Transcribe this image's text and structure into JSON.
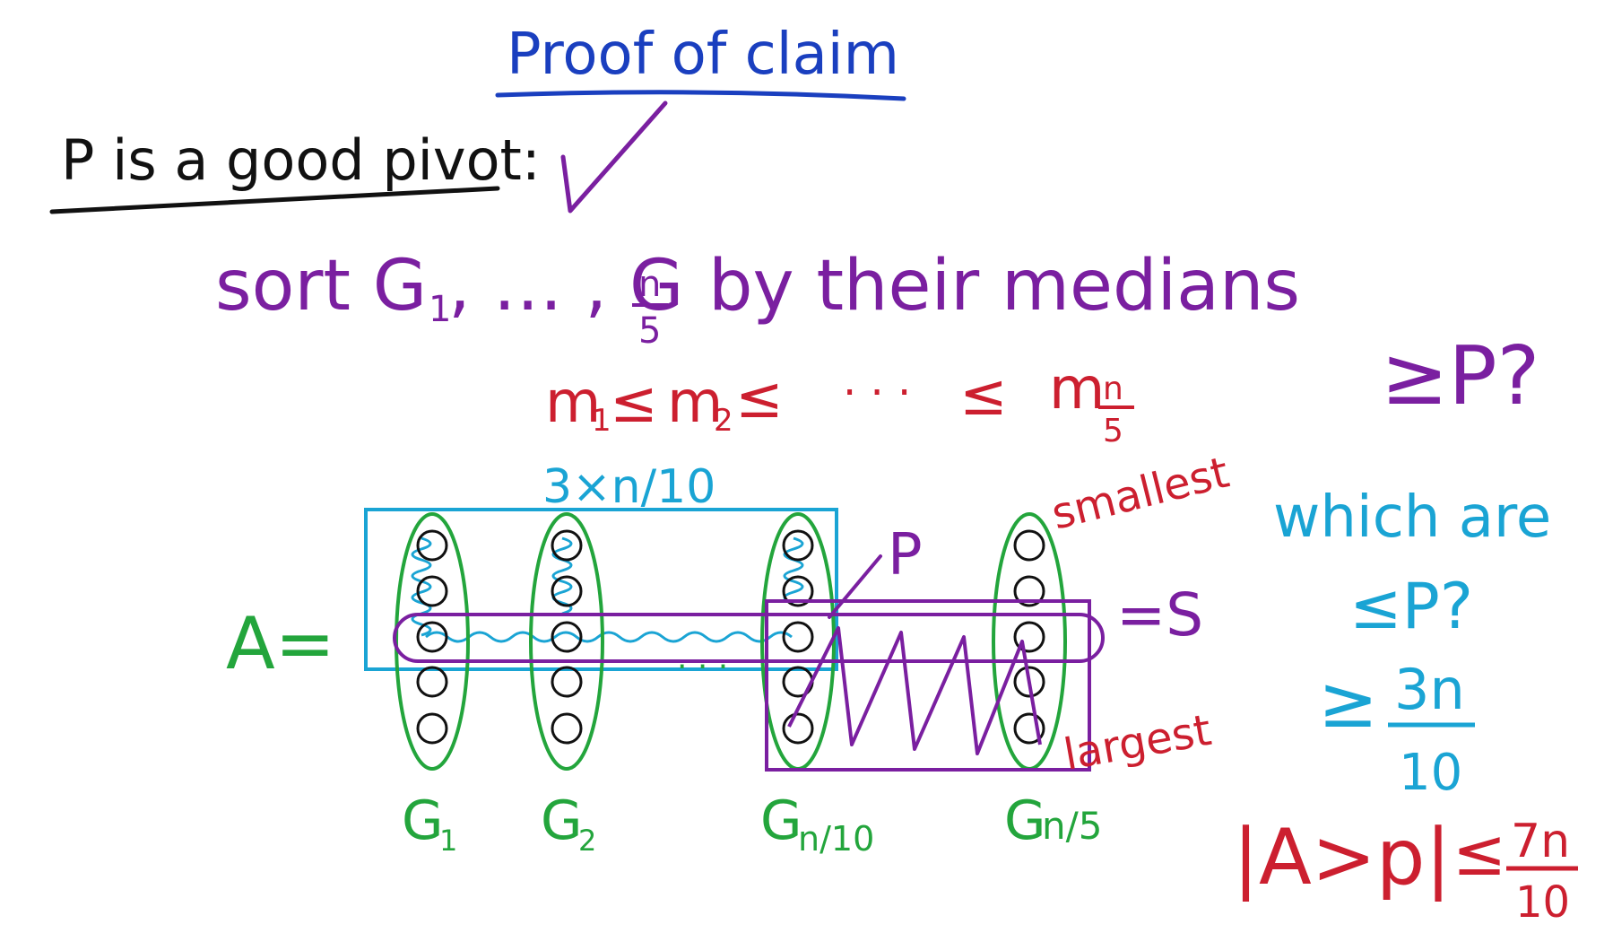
{
  "title": "Proof of claim",
  "heading": "P is a good pivot:",
  "check_mark": "check-icon",
  "sort_line": {
    "prefix": "sort G",
    "sub1": "1",
    "mid": ", … , G",
    "sub_num": "n",
    "sub_den": "5",
    "suffix": " by their medians"
  },
  "median_order": {
    "m1": "m",
    "m1_sub": "1",
    "le": "≤",
    "m2": "m",
    "m2_sub": "2",
    "dots": ". . .",
    "mn": "m",
    "mn_sub_num": "n",
    "mn_sub_den": "5"
  },
  "count_label": "3×n/10",
  "a_label": "A=",
  "p_label": "P",
  "s_label": "=S",
  "smallest_label": "smallest",
  "largest_label": "largest",
  "groups": [
    {
      "label": "G1",
      "base": "G",
      "sub": "1"
    },
    {
      "label": "G2",
      "base": "G",
      "sub": "2"
    },
    {
      "label": "Gn/10",
      "base": "G",
      "sub": "n/10"
    },
    {
      "label": "Gn/5",
      "base": "G",
      "sub": "n/5"
    }
  ],
  "mid_dots": ". . .",
  "geq_p": "≥P?",
  "which_are": "which are",
  "leq_p": "≤P?",
  "geq_3n": {
    "sym": "≥",
    "num": "3n",
    "den": "10"
  },
  "bound": {
    "lhs": "|A>p|",
    "sym": "≤",
    "num": "7n",
    "den": "10"
  },
  "colors": {
    "blue": "#1a3fbf",
    "purple": "#7a1fa0",
    "red": "#cc1f2f",
    "green": "#23a53c",
    "cyan": "#1aa4d4",
    "black": "#111111"
  }
}
